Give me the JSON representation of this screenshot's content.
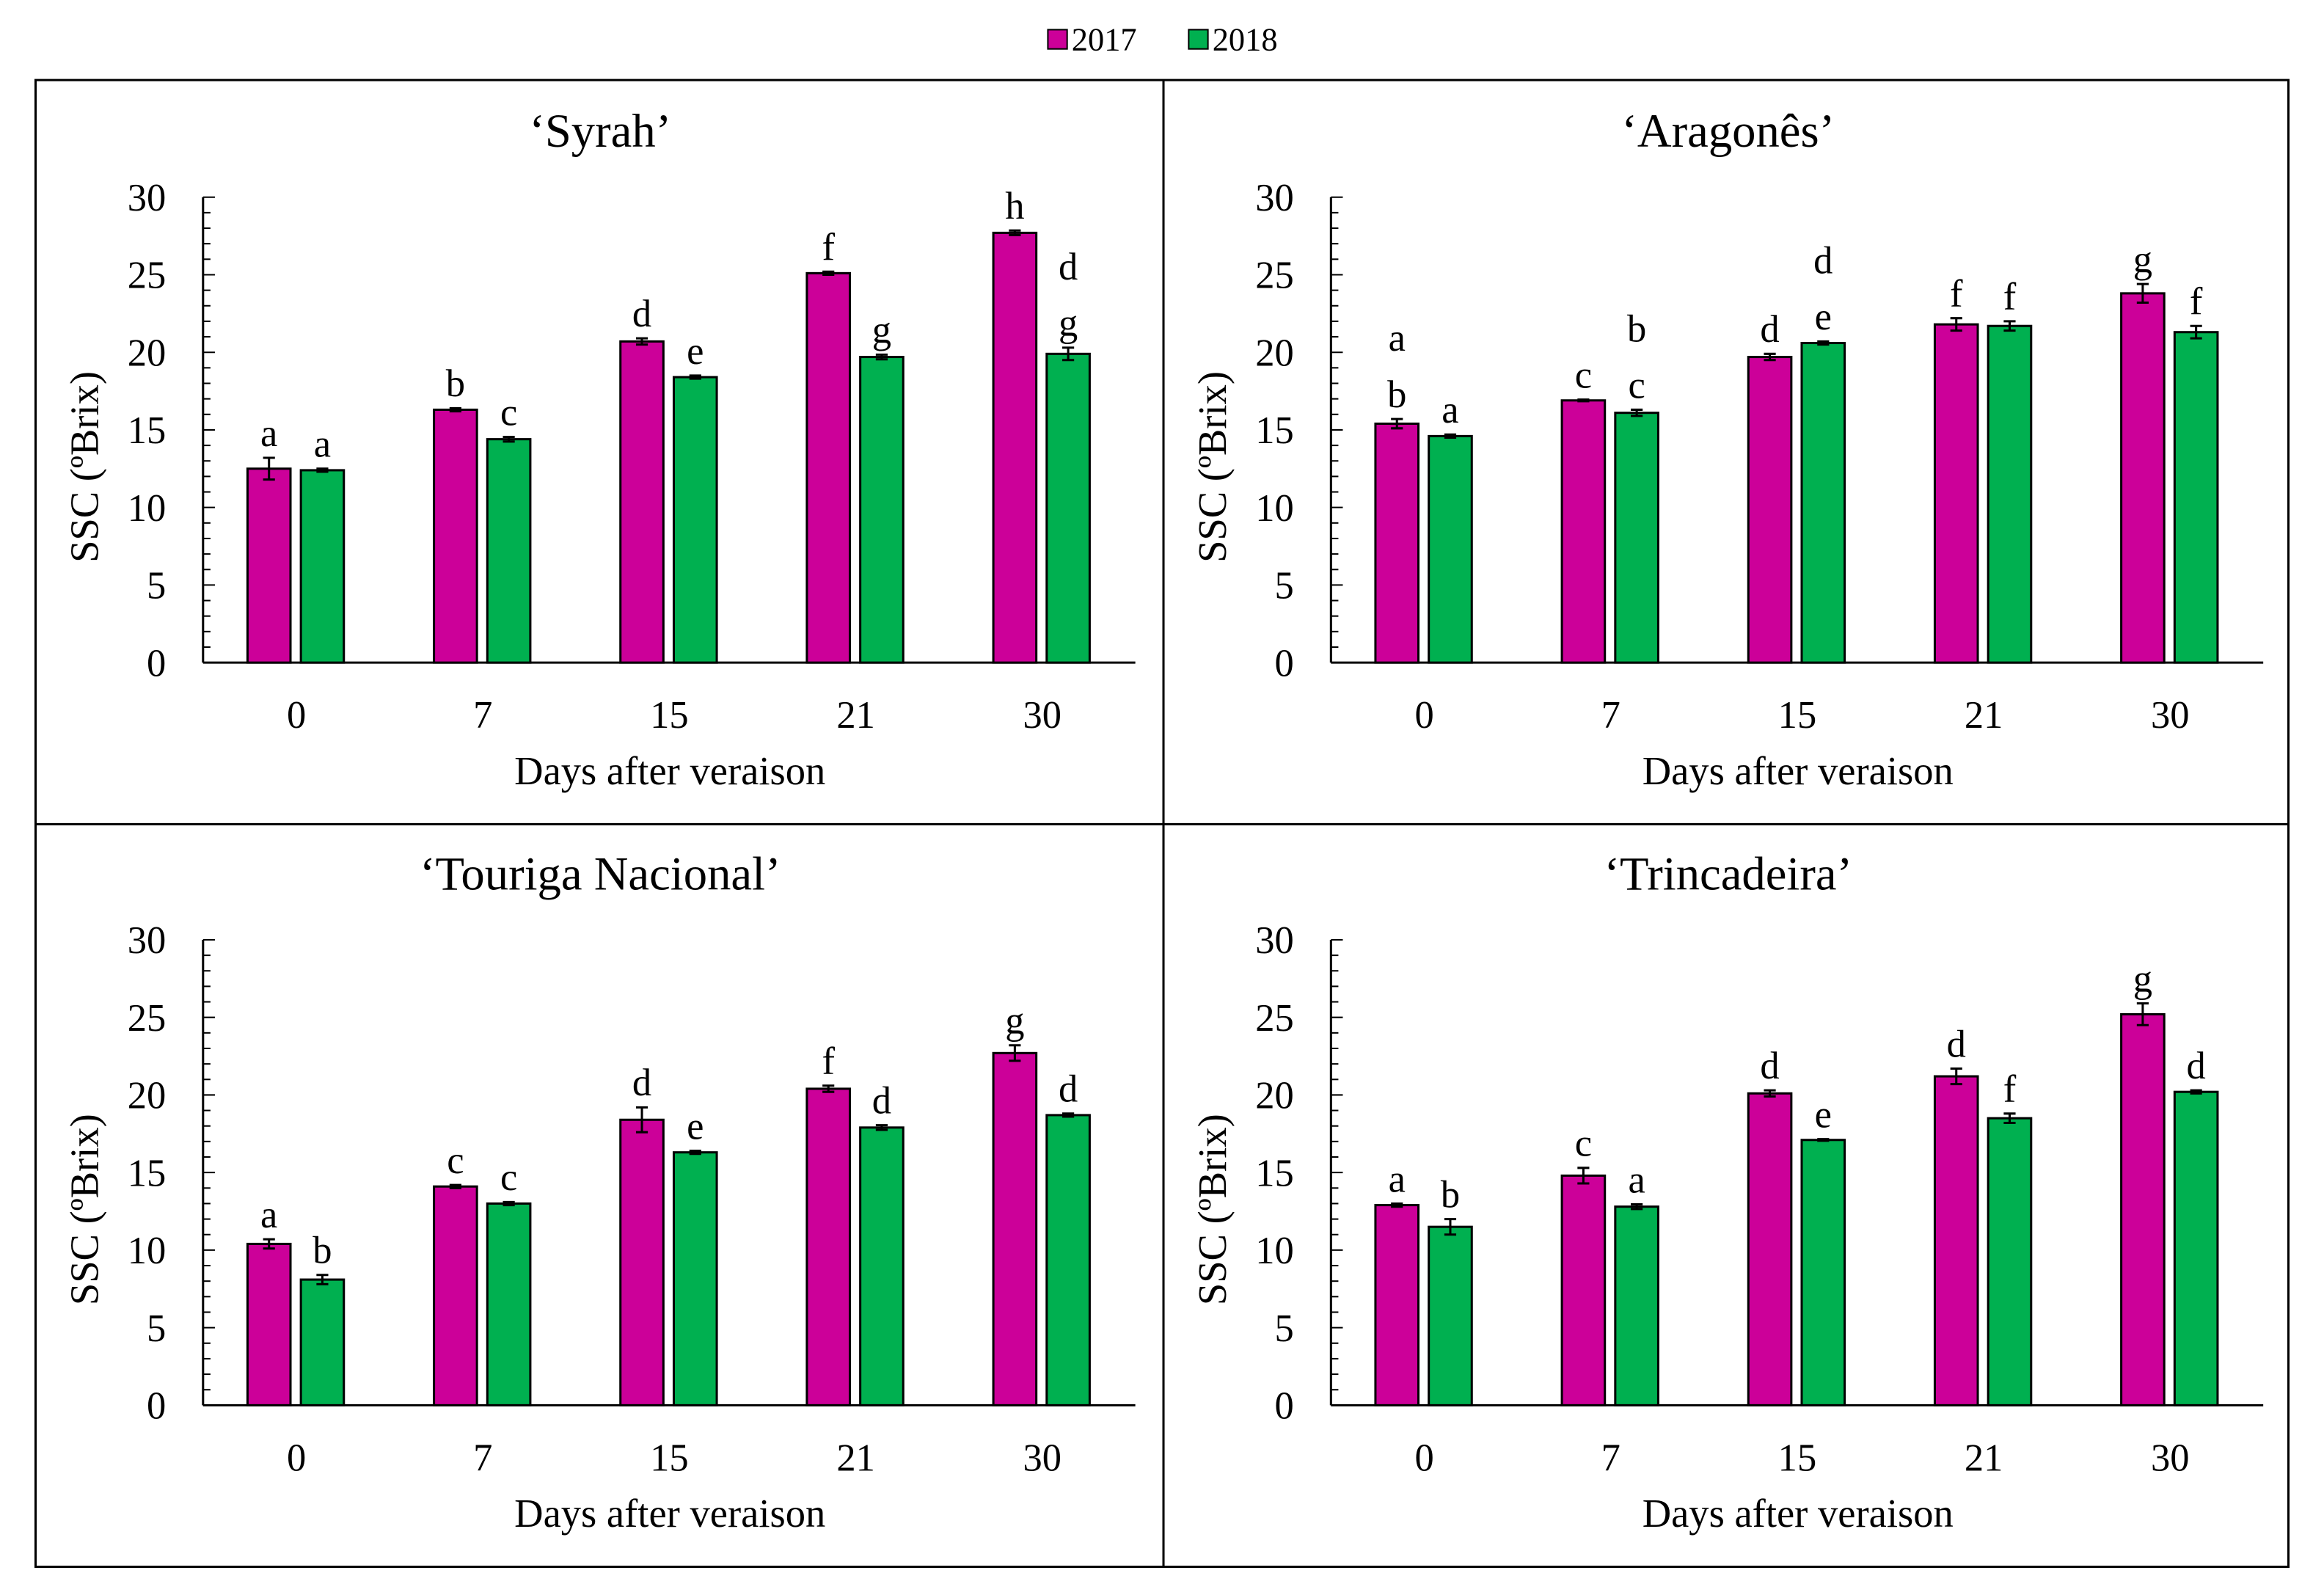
{
  "colors": {
    "s2017": "#cc0099",
    "s2018": "#00b050"
  },
  "chart_data": {
    "type": "bar",
    "legend": {
      "position": "top-center",
      "entries": [
        "2017",
        "2018"
      ]
    },
    "panels": [
      {
        "title": "‘Syrah’",
        "xlabel": "Days after veraison",
        "ylabel": "SSC (ºBrix)",
        "ylim": [
          0,
          30
        ],
        "yticks": [
          "0",
          "5",
          "10",
          "15",
          "20",
          "25",
          "30"
        ],
        "categories": [
          "0",
          "7",
          "15",
          "21",
          "30"
        ],
        "series": [
          {
            "name": "2017",
            "values": [
              12.5,
              16.3,
              20.7,
              25.1,
              27.7
            ],
            "errors": [
              0.7,
              0.1,
              0.2,
              0.1,
              0.15
            ],
            "letters": [
              [
                "a"
              ],
              [
                "b"
              ],
              [
                "d"
              ],
              [
                "f"
              ],
              [
                "h"
              ]
            ]
          },
          {
            "name": "2018",
            "values": [
              12.4,
              14.4,
              18.4,
              19.7,
              19.9
            ],
            "errors": [
              0.1,
              0.15,
              0.1,
              0.15,
              0.4
            ],
            "letters": [
              [
                "a"
              ],
              [
                "c"
              ],
              [
                "e"
              ],
              [
                "g"
              ],
              [
                "d",
                "g"
              ]
            ]
          }
        ]
      },
      {
        "title": "‘Aragonês’",
        "xlabel": "Days after veraison",
        "ylabel": "SSC (ºBrix)",
        "ylim": [
          0,
          30
        ],
        "yticks": [
          "0",
          "5",
          "10",
          "15",
          "20",
          "25",
          "30"
        ],
        "categories": [
          "0",
          "7",
          "15",
          "21",
          "30"
        ],
        "series": [
          {
            "name": "2017",
            "values": [
              15.4,
              16.9,
              19.7,
              21.8,
              23.8
            ],
            "errors": [
              0.3,
              0.05,
              0.2,
              0.4,
              0.6
            ],
            "letters": [
              [
                "a",
                "b"
              ],
              [
                "c"
              ],
              [
                "d"
              ],
              [
                "f"
              ],
              [
                "g"
              ]
            ]
          },
          {
            "name": "2018",
            "values": [
              14.6,
              16.1,
              20.6,
              21.7,
              21.3
            ],
            "errors": [
              0.1,
              0.2,
              0.1,
              0.3,
              0.4
            ],
            "letters": [
              [
                "a"
              ],
              [
                "b",
                "c"
              ],
              [
                "d",
                "e"
              ],
              [
                "f"
              ],
              [
                "f"
              ]
            ]
          }
        ]
      },
      {
        "title": "‘Touriga Nacional’",
        "xlabel": "Days after veraison",
        "ylabel": "SSC (ºBrix)",
        "ylim": [
          0,
          30
        ],
        "yticks": [
          "0",
          "5",
          "10",
          "15",
          "20",
          "25",
          "30"
        ],
        "categories": [
          "0",
          "7",
          "15",
          "21",
          "30"
        ],
        "series": [
          {
            "name": "2017",
            "values": [
              10.4,
              14.1,
              18.4,
              20.4,
              22.7
            ],
            "errors": [
              0.3,
              0.1,
              0.8,
              0.2,
              0.5
            ],
            "letters": [
              [
                "a"
              ],
              [
                "c"
              ],
              [
                "d"
              ],
              [
                "f"
              ],
              [
                "g"
              ]
            ]
          },
          {
            "name": "2018",
            "values": [
              8.1,
              13.0,
              16.3,
              17.9,
              18.7
            ],
            "errors": [
              0.3,
              0.1,
              0.1,
              0.15,
              0.1
            ],
            "letters": [
              [
                "b"
              ],
              [
                "c"
              ],
              [
                "e"
              ],
              [
                "d"
              ],
              [
                "d"
              ]
            ]
          }
        ]
      },
      {
        "title": "‘Trincadeira’",
        "xlabel": "Days after veraison",
        "ylabel": "SSC (ºBrix)",
        "ylim": [
          0,
          30
        ],
        "yticks": [
          "0",
          "5",
          "10",
          "15",
          "20",
          "25",
          "30"
        ],
        "categories": [
          "0",
          "7",
          "15",
          "21",
          "30"
        ],
        "series": [
          {
            "name": "2017",
            "values": [
              12.9,
              14.8,
              20.1,
              21.2,
              25.2
            ],
            "errors": [
              0.1,
              0.5,
              0.2,
              0.5,
              0.7
            ],
            "letters": [
              [
                "a"
              ],
              [
                "c"
              ],
              [
                "d"
              ],
              [
                "d"
              ],
              [
                "g"
              ]
            ]
          },
          {
            "name": "2018",
            "values": [
              11.5,
              12.8,
              17.1,
              18.5,
              20.2
            ],
            "errors": [
              0.5,
              0.15,
              0.05,
              0.3,
              0.1
            ],
            "letters": [
              [
                "b"
              ],
              [
                "a"
              ],
              [
                "e"
              ],
              [
                "f"
              ],
              [
                "d"
              ]
            ]
          }
        ]
      }
    ]
  }
}
